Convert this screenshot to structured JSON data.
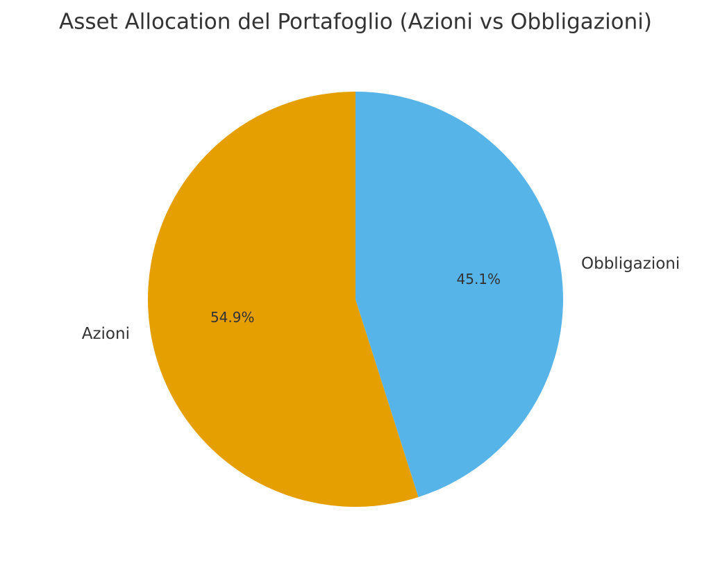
{
  "chart_data": {
    "type": "pie",
    "title": "Asset Allocation del Portafoglio (Azioni vs Obbligazioni)",
    "categories": [
      "Azioni",
      "Obbligazioni"
    ],
    "values": [
      54.9,
      45.1
    ],
    "value_labels": [
      "54.9%",
      "45.1%"
    ],
    "colors": [
      "#E69F00",
      "#56B4E9"
    ]
  }
}
